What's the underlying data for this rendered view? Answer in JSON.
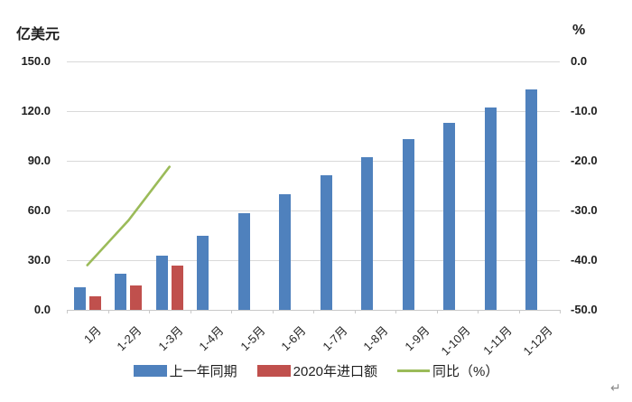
{
  "page": {
    "trailing_mark": "↵"
  },
  "chart_data": {
    "type": "bar",
    "subtype": "combo-bar-line-dual-axis",
    "categories": [
      "1月",
      "1-2月",
      "1-3月",
      "1-4月",
      "1-5月",
      "1-6月",
      "1-7月",
      "1-8月",
      "1-9月",
      "1-10月",
      "1-11月",
      "1-12月"
    ],
    "series": [
      {
        "name": "上一年同期",
        "type": "bar",
        "axis": "left",
        "color": "#4F81BD",
        "values": [
          13.5,
          22,
          33,
          45,
          58.5,
          70,
          81.5,
          92,
          103,
          113,
          122,
          133
        ]
      },
      {
        "name": "2020年进口额",
        "type": "bar",
        "axis": "left",
        "color": "#C0504D",
        "values": [
          8,
          15,
          26.5,
          null,
          null,
          null,
          null,
          null,
          null,
          null,
          null,
          null
        ]
      },
      {
        "name": "同比（%）",
        "type": "line",
        "axis": "right",
        "color": "#9BBB59",
        "values": [
          -41,
          -32,
          -21.2,
          null,
          null,
          null,
          null,
          null,
          null,
          null,
          null,
          null
        ]
      }
    ],
    "left_axis": {
      "label": "亿美元",
      "min": 0,
      "max": 150,
      "ticks": [
        "150.0",
        "120.0",
        "90.0",
        "60.0",
        "30.0",
        "0.0"
      ]
    },
    "right_axis": {
      "label": "%",
      "min": -50,
      "max": 0,
      "ticks": [
        "0.0",
        "-10.0",
        "-20.0",
        "-30.0",
        "-40.0",
        "-50.0"
      ]
    },
    "grid": "horizontal",
    "legend_position": "bottom",
    "colors": {
      "grid": "#D9D9D9",
      "axis": "#C9C9C9",
      "text": "#1F1F1F"
    }
  }
}
